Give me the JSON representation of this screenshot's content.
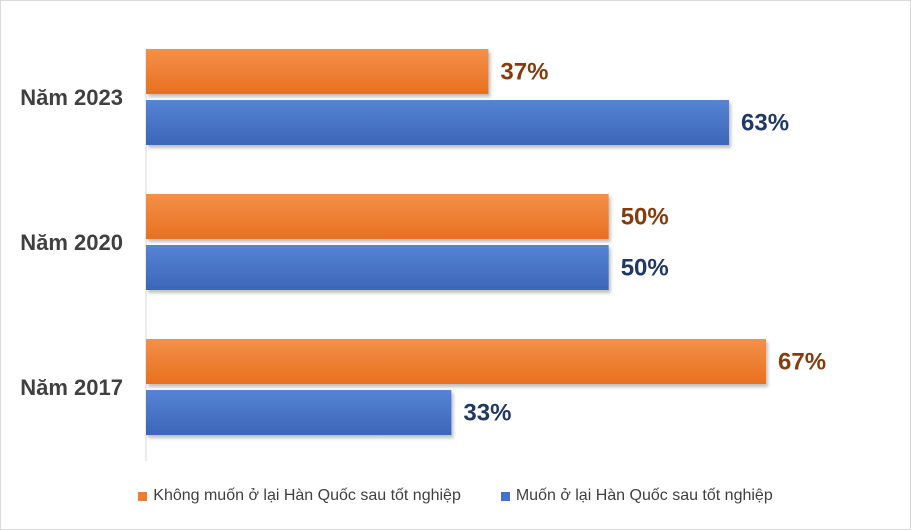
{
  "chart_data": {
    "type": "bar",
    "orientation": "horizontal",
    "categories": [
      "Năm 2023",
      "Năm 2020",
      "Năm 2017"
    ],
    "series": [
      {
        "name": "Không muốn ở lại Hàn Quốc sau tốt nghiệp",
        "values": [
          37,
          50,
          67
        ],
        "labels": [
          "37%",
          "50%",
          "67%"
        ],
        "color": "#ED7D31",
        "label_color": "#843C0C"
      },
      {
        "name": "Muốn ở lại Hàn Quốc sau tốt nghiệp",
        "values": [
          63,
          50,
          33
        ],
        "labels": [
          "63%",
          "50%",
          "33%"
        ],
        "color": "#4472C4",
        "label_color": "#1F3864"
      }
    ],
    "xlim": [
      0,
      100
    ],
    "grid": false,
    "legend_position": "bottom"
  }
}
